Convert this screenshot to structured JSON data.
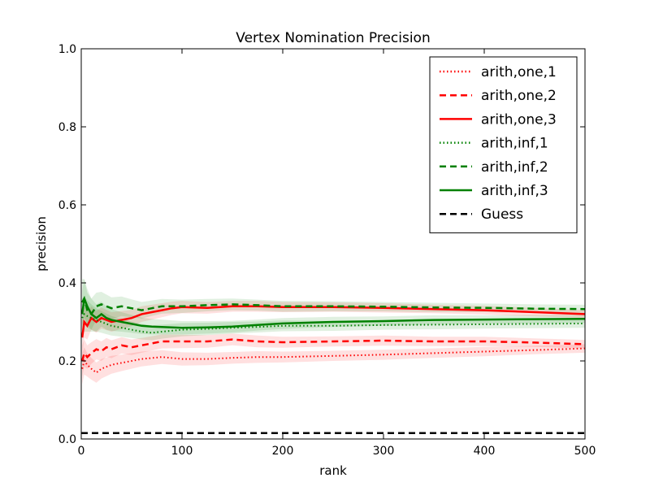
{
  "chart_data": {
    "type": "line",
    "title": "Vertex Nomination Precision",
    "xlabel": "rank",
    "ylabel": "precision",
    "xlim": [
      0,
      500
    ],
    "ylim": [
      0.0,
      1.0
    ],
    "x_ticks": [
      0,
      100,
      200,
      300,
      400,
      500
    ],
    "y_ticks": [
      0.0,
      0.2,
      0.4,
      0.6,
      0.8,
      1.0
    ],
    "x_tick_labels": [
      "0",
      "100",
      "200",
      "300",
      "400",
      "500"
    ],
    "y_tick_labels": [
      "0.0",
      "0.2",
      "0.4",
      "0.6",
      "0.8",
      "1.0"
    ],
    "grid": false,
    "legend_position": "top-right",
    "series": [
      {
        "name": "arith,one,1",
        "color": "#ff0000",
        "style": "dotted",
        "x": [
          1,
          3,
          6,
          10,
          15,
          20,
          30,
          40,
          50,
          60,
          80,
          100,
          125,
          150,
          175,
          200,
          250,
          300,
          350,
          400,
          450,
          500
        ],
        "y": [
          0.18,
          0.2,
          0.19,
          0.18,
          0.17,
          0.18,
          0.19,
          0.195,
          0.2,
          0.205,
          0.21,
          0.205,
          0.205,
          0.208,
          0.21,
          0.21,
          0.213,
          0.216,
          0.22,
          0.224,
          0.228,
          0.232
        ],
        "band": [
          0.04,
          0.035,
          0.03,
          0.028,
          0.026,
          0.025,
          0.023,
          0.021,
          0.02,
          0.019,
          0.018,
          0.017,
          0.016,
          0.015,
          0.015,
          0.014,
          0.013,
          0.013,
          0.012,
          0.012,
          0.011,
          0.011
        ]
      },
      {
        "name": "arith,one,2",
        "color": "#ff0000",
        "style": "dashed",
        "x": [
          1,
          3,
          6,
          10,
          15,
          20,
          25,
          30,
          40,
          50,
          60,
          80,
          100,
          125,
          150,
          175,
          200,
          250,
          300,
          350,
          400,
          450,
          500
        ],
        "y": [
          0.2,
          0.22,
          0.21,
          0.22,
          0.23,
          0.225,
          0.235,
          0.23,
          0.24,
          0.235,
          0.24,
          0.25,
          0.25,
          0.25,
          0.255,
          0.25,
          0.248,
          0.25,
          0.252,
          0.25,
          0.25,
          0.247,
          0.243
        ],
        "band": [
          0.04,
          0.035,
          0.03,
          0.028,
          0.026,
          0.025,
          0.024,
          0.023,
          0.021,
          0.02,
          0.019,
          0.018,
          0.017,
          0.016,
          0.015,
          0.015,
          0.014,
          0.013,
          0.013,
          0.012,
          0.012,
          0.011,
          0.011
        ]
      },
      {
        "name": "arith,one,3",
        "color": "#ff0000",
        "style": "solid",
        "x": [
          1,
          3,
          6,
          10,
          15,
          20,
          25,
          30,
          40,
          50,
          60,
          70,
          80,
          90,
          100,
          125,
          150,
          175,
          200,
          250,
          300,
          350,
          400,
          450,
          500
        ],
        "y": [
          0.26,
          0.3,
          0.29,
          0.31,
          0.3,
          0.31,
          0.305,
          0.3,
          0.305,
          0.31,
          0.32,
          0.325,
          0.33,
          0.335,
          0.338,
          0.336,
          0.34,
          0.34,
          0.338,
          0.338,
          0.336,
          0.333,
          0.33,
          0.325,
          0.32
        ],
        "band": [
          0.045,
          0.04,
          0.035,
          0.03,
          0.028,
          0.027,
          0.026,
          0.025,
          0.023,
          0.021,
          0.02,
          0.019,
          0.018,
          0.017,
          0.016,
          0.015,
          0.014,
          0.014,
          0.013,
          0.012,
          0.012,
          0.011,
          0.011,
          0.011,
          0.01
        ]
      },
      {
        "name": "arith,inf,1",
        "color": "#008000",
        "style": "dotted",
        "x": [
          1,
          3,
          6,
          10,
          15,
          20,
          30,
          40,
          50,
          60,
          70,
          80,
          100,
          125,
          150,
          175,
          200,
          250,
          300,
          350,
          400,
          450,
          500
        ],
        "y": [
          0.31,
          0.32,
          0.315,
          0.31,
          0.305,
          0.3,
          0.29,
          0.285,
          0.28,
          0.275,
          0.272,
          0.275,
          0.28,
          0.282,
          0.285,
          0.287,
          0.29,
          0.29,
          0.292,
          0.293,
          0.294,
          0.295,
          0.296
        ],
        "band": [
          0.05,
          0.045,
          0.04,
          0.035,
          0.03,
          0.028,
          0.025,
          0.023,
          0.021,
          0.02,
          0.019,
          0.018,
          0.017,
          0.016,
          0.015,
          0.014,
          0.014,
          0.013,
          0.012,
          0.012,
          0.011,
          0.011,
          0.011
        ]
      },
      {
        "name": "arith,inf,2",
        "color": "#008000",
        "style": "dashed",
        "x": [
          1,
          3,
          6,
          10,
          15,
          20,
          25,
          30,
          40,
          50,
          60,
          70,
          80,
          100,
          125,
          150,
          175,
          200,
          250,
          300,
          350,
          400,
          450,
          500
        ],
        "y": [
          0.35,
          0.36,
          0.33,
          0.32,
          0.34,
          0.345,
          0.34,
          0.335,
          0.34,
          0.335,
          0.33,
          0.335,
          0.34,
          0.34,
          0.343,
          0.345,
          0.343,
          0.34,
          0.34,
          0.339,
          0.337,
          0.336,
          0.334,
          0.333
        ],
        "band": [
          0.06,
          0.05,
          0.045,
          0.04,
          0.035,
          0.032,
          0.03,
          0.028,
          0.025,
          0.023,
          0.021,
          0.02,
          0.019,
          0.017,
          0.016,
          0.015,
          0.014,
          0.014,
          0.013,
          0.012,
          0.012,
          0.011,
          0.011,
          0.011
        ]
      },
      {
        "name": "arith,inf,3",
        "color": "#008000",
        "style": "solid",
        "x": [
          1,
          3,
          6,
          10,
          15,
          20,
          25,
          30,
          40,
          50,
          60,
          70,
          80,
          90,
          100,
          125,
          150,
          175,
          200,
          250,
          300,
          350,
          400,
          450,
          500
        ],
        "y": [
          0.32,
          0.36,
          0.34,
          0.32,
          0.31,
          0.32,
          0.31,
          0.305,
          0.3,
          0.295,
          0.29,
          0.288,
          0.287,
          0.286,
          0.285,
          0.286,
          0.288,
          0.292,
          0.296,
          0.3,
          0.302,
          0.305,
          0.306,
          0.307,
          0.308
        ],
        "band": [
          0.06,
          0.05,
          0.045,
          0.04,
          0.035,
          0.032,
          0.03,
          0.028,
          0.025,
          0.023,
          0.021,
          0.02,
          0.019,
          0.018,
          0.017,
          0.016,
          0.015,
          0.014,
          0.014,
          0.013,
          0.012,
          0.012,
          0.011,
          0.011,
          0.011
        ]
      },
      {
        "name": "Guess",
        "color": "#000000",
        "style": "dashed",
        "x": [
          0,
          500
        ],
        "y": [
          0.015,
          0.015
        ]
      }
    ]
  }
}
